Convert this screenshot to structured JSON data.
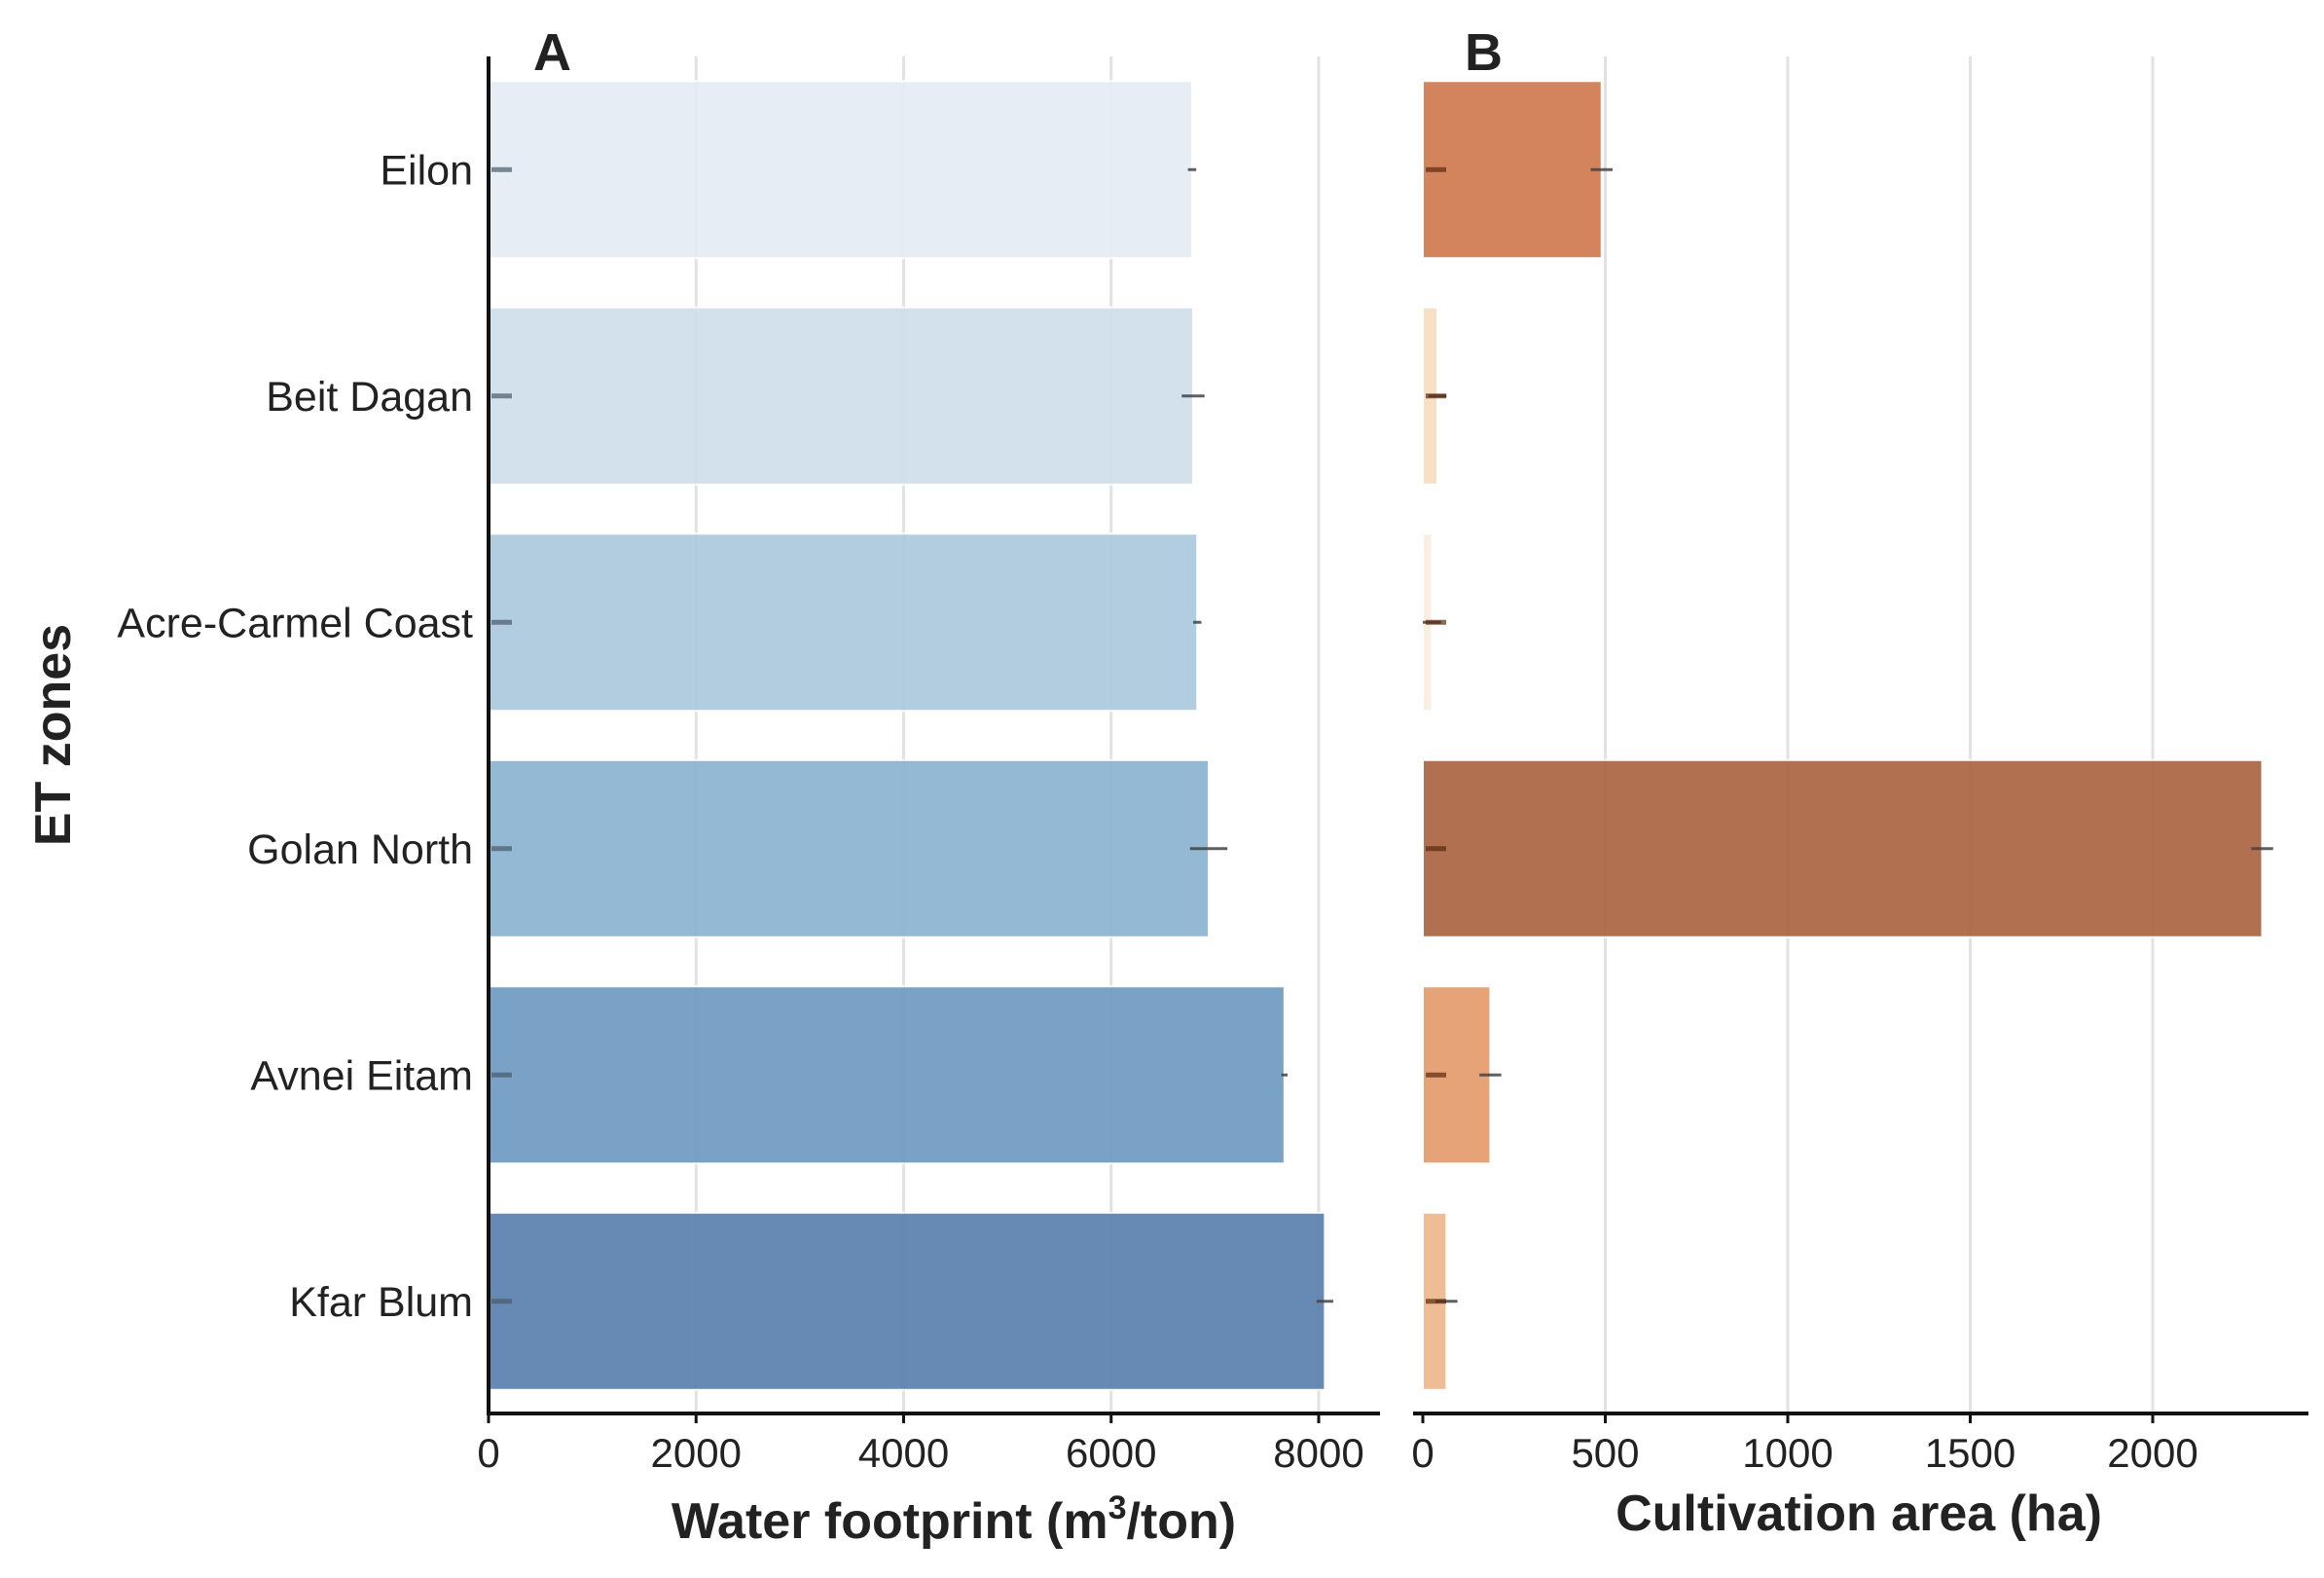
{
  "chart_data": [
    {
      "type": "bar",
      "orientation": "horizontal",
      "panel_label": "A",
      "categories": [
        "Eilon",
        "Beit Dagan",
        "Acre-Carmel Coast",
        "Golan North",
        "Avnei Eitam",
        "Kfar Blum"
      ],
      "values": [
        6780,
        6790,
        6830,
        6940,
        7670,
        8060
      ],
      "error": [
        40,
        110,
        40,
        180,
        30,
        80
      ],
      "colors": [
        "#e4ecf5",
        "#d0dfeb",
        "#adc9de",
        "#8cb4d1",
        "#6e9bc2",
        "#5a81ad"
      ],
      "ylabel": "ET zones",
      "xlabel_main": "Water footprint (m",
      "xlabel_sup": "3",
      "xlabel_tail": "/ton)",
      "xlim": [
        0,
        8600
      ],
      "xticks": [
        "0",
        "2000",
        "4000",
        "6000",
        "8000"
      ],
      "grid": "vertical"
    },
    {
      "type": "bar",
      "orientation": "horizontal",
      "panel_label": "B",
      "categories": [
        "Eilon",
        "Beit Dagan",
        "Acre-Carmel Coast",
        "Golan North",
        "Avnei Eitam",
        "Kfar Blum"
      ],
      "values": [
        490,
        40,
        25,
        2300,
        185,
        65
      ],
      "error": [
        30,
        25,
        25,
        30,
        30,
        30
      ],
      "colors": [
        "#d17a4f",
        "#f7dfc0",
        "#fbeee0",
        "#ab6643",
        "#e39c6c",
        "#efb78b"
      ],
      "xlabel": "Cultivation area (ha)",
      "xlim": [
        0,
        2410
      ],
      "xticks": [
        "0",
        "500",
        "1000",
        "1500",
        "2000"
      ],
      "grid": "vertical"
    }
  ]
}
